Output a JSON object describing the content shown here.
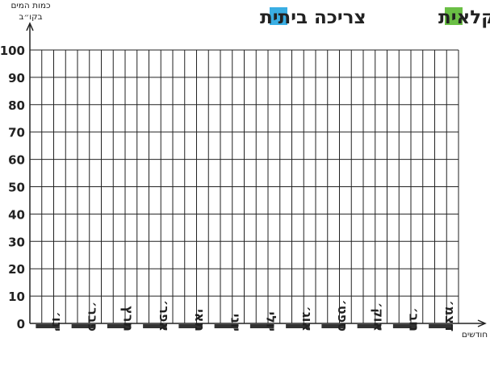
{
  "chart_data": {
    "type": "bar",
    "title": "",
    "ylabel_lines": [
      "כמות המים",
      "בקו״ב"
    ],
    "xlabel": "חודשים",
    "categories": [
      "ינו׳",
      "פבר׳",
      "מרץ",
      "אפר׳",
      "מאי",
      "יוני",
      "יולי",
      "אוג׳",
      "ספט׳",
      "אוק׳",
      "נוב׳",
      "דצמ׳"
    ],
    "yticks": [
      0,
      10,
      20,
      30,
      40,
      50,
      60,
      70,
      80,
      90,
      100
    ],
    "ylim": [
      0,
      100
    ],
    "grid": true,
    "legend_position": "top",
    "series": [
      {
        "name": "צריכה חקלאית",
        "color": "#6abf45",
        "values": [
          0,
          0,
          0,
          0,
          0,
          0,
          0,
          0,
          0,
          0,
          0,
          0
        ]
      },
      {
        "name": "צריכה ביתית",
        "color": "#3aaee3",
        "values": [
          0,
          0,
          0,
          0,
          0,
          0,
          0,
          0,
          0,
          0,
          0,
          0
        ]
      }
    ],
    "month_marker_color": "#333333"
  }
}
